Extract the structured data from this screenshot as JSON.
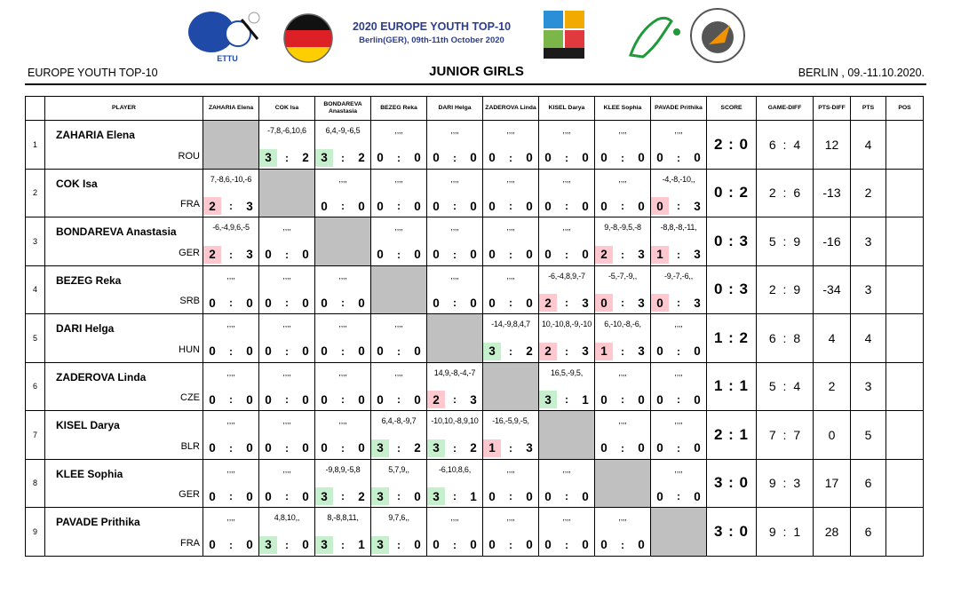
{
  "header": {
    "event_title": "2020 EUROPE YOUTH TOP-10",
    "event_subtitle": "Berlin(GER), 09th-11th October 2020",
    "left": "EUROPE YOUTH TOP-10",
    "center": "JUNIOR GIRLS",
    "right": "BERLIN , 09.-11.10.2020.",
    "logos": [
      "ettu-logo",
      "germany-flag-icon",
      "europe-youth-top10-logo",
      "dttb-logo",
      "berlin-club-logo"
    ]
  },
  "columns": {
    "player": "PLAYER",
    "opponents": [
      "ZAHARIA Elena",
      "COK Isa",
      "BONDAREVA Anastasia",
      "BEZEG Reka",
      "DARI Helga",
      "ZADEROVA Linda",
      "KISEL Darya",
      "KLEE Sophia",
      "PAVADE Prithika"
    ],
    "score": "SCORE",
    "game_diff": "GAME-DIFF",
    "pts_diff": "PTS-DIFF",
    "pts": "PTS",
    "pos": "POS"
  },
  "rows": [
    {
      "num": "1",
      "name": "ZAHARIA Elena",
      "nat": "ROU",
      "score": "2 : 0",
      "gd": "6 : 4",
      "pd": "12",
      "pts": "4",
      "pos": "",
      "cells": [
        null,
        {
          "sets": "-7,8,-6,10,6",
          "a": "3",
          "b": "2",
          "r": "w"
        },
        {
          "sets": "6,4,-9,-6,5",
          "a": "3",
          "b": "2",
          "r": "w"
        },
        {
          "sets": ",,,,",
          "a": "0",
          "b": "0",
          "r": ""
        },
        {
          "sets": ",,,,",
          "a": "0",
          "b": "0",
          "r": ""
        },
        {
          "sets": ",,,,",
          "a": "0",
          "b": "0",
          "r": ""
        },
        {
          "sets": ",,,,",
          "a": "0",
          "b": "0",
          "r": ""
        },
        {
          "sets": ",,,,",
          "a": "0",
          "b": "0",
          "r": ""
        },
        {
          "sets": ",,,,",
          "a": "0",
          "b": "0",
          "r": ""
        }
      ]
    },
    {
      "num": "2",
      "name": "COK Isa",
      "nat": "FRA",
      "score": "0 : 2",
      "gd": "2 : 6",
      "pd": "-13",
      "pts": "2",
      "pos": "",
      "cells": [
        {
          "sets": "7,-8,6,-10,-6",
          "a": "2",
          "b": "3",
          "r": "l"
        },
        null,
        {
          "sets": ",,,,",
          "a": "0",
          "b": "0",
          "r": ""
        },
        {
          "sets": ",,,,",
          "a": "0",
          "b": "0",
          "r": ""
        },
        {
          "sets": ",,,,",
          "a": "0",
          "b": "0",
          "r": ""
        },
        {
          "sets": ",,,,",
          "a": "0",
          "b": "0",
          "r": ""
        },
        {
          "sets": ",,,,",
          "a": "0",
          "b": "0",
          "r": ""
        },
        {
          "sets": ",,,,",
          "a": "0",
          "b": "0",
          "r": ""
        },
        {
          "sets": "-4,-8,-10,,",
          "a": "0",
          "b": "3",
          "r": "l"
        }
      ]
    },
    {
      "num": "3",
      "name": "BONDAREVA Anastasia",
      "nat": "GER",
      "score": "0 : 3",
      "gd": "5 : 9",
      "pd": "-16",
      "pts": "3",
      "pos": "",
      "cells": [
        {
          "sets": "-6,-4,9,6,-5",
          "a": "2",
          "b": "3",
          "r": "l"
        },
        {
          "sets": ",,,,",
          "a": "0",
          "b": "0",
          "r": ""
        },
        null,
        {
          "sets": ",,,,",
          "a": "0",
          "b": "0",
          "r": ""
        },
        {
          "sets": ",,,,",
          "a": "0",
          "b": "0",
          "r": ""
        },
        {
          "sets": ",,,,",
          "a": "0",
          "b": "0",
          "r": ""
        },
        {
          "sets": ",,,,",
          "a": "0",
          "b": "0",
          "r": ""
        },
        {
          "sets": "9,-8,-9,5,-8",
          "a": "2",
          "b": "3",
          "r": "l"
        },
        {
          "sets": "-8,8,-8,-11,",
          "a": "1",
          "b": "3",
          "r": "l"
        }
      ]
    },
    {
      "num": "4",
      "name": "BEZEG Reka",
      "nat": "SRB",
      "score": "0 : 3",
      "gd": "2 : 9",
      "pd": "-34",
      "pts": "3",
      "pos": "",
      "cells": [
        {
          "sets": ",,,,",
          "a": "0",
          "b": "0",
          "r": ""
        },
        {
          "sets": ",,,,",
          "a": "0",
          "b": "0",
          "r": ""
        },
        {
          "sets": ",,,,",
          "a": "0",
          "b": "0",
          "r": ""
        },
        null,
        {
          "sets": ",,,,",
          "a": "0",
          "b": "0",
          "r": ""
        },
        {
          "sets": ",,,,",
          "a": "0",
          "b": "0",
          "r": ""
        },
        {
          "sets": "-6,-4,8,9,-7",
          "a": "2",
          "b": "3",
          "r": "l"
        },
        {
          "sets": "-5,-7,-9,,",
          "a": "0",
          "b": "3",
          "r": "l"
        },
        {
          "sets": "-9,-7,-6,,",
          "a": "0",
          "b": "3",
          "r": "l"
        }
      ]
    },
    {
      "num": "5",
      "name": "DARI Helga",
      "nat": "HUN",
      "score": "1 : 2",
      "gd": "6 : 8",
      "pd": "4",
      "pts": "4",
      "pos": "",
      "cells": [
        {
          "sets": ",,,,",
          "a": "0",
          "b": "0",
          "r": ""
        },
        {
          "sets": ",,,,",
          "a": "0",
          "b": "0",
          "r": ""
        },
        {
          "sets": ",,,,",
          "a": "0",
          "b": "0",
          "r": ""
        },
        {
          "sets": ",,,,",
          "a": "0",
          "b": "0",
          "r": ""
        },
        null,
        {
          "sets": "-14,-9,8,4,7",
          "a": "3",
          "b": "2",
          "r": "w"
        },
        {
          "sets": "10,-10,8,-9,-10",
          "a": "2",
          "b": "3",
          "r": "l"
        },
        {
          "sets": "6,-10,-8,-6,",
          "a": "1",
          "b": "3",
          "r": "l"
        },
        {
          "sets": ",,,,",
          "a": "0",
          "b": "0",
          "r": ""
        }
      ]
    },
    {
      "num": "6",
      "name": "ZADEROVA Linda",
      "nat": "CZE",
      "score": "1 : 1",
      "gd": "5 : 4",
      "pd": "2",
      "pts": "3",
      "pos": "",
      "cells": [
        {
          "sets": ",,,,",
          "a": "0",
          "b": "0",
          "r": ""
        },
        {
          "sets": ",,,,",
          "a": "0",
          "b": "0",
          "r": ""
        },
        {
          "sets": ",,,,",
          "a": "0",
          "b": "0",
          "r": ""
        },
        {
          "sets": ",,,,",
          "a": "0",
          "b": "0",
          "r": ""
        },
        {
          "sets": "14,9,-8,-4,-7",
          "a": "2",
          "b": "3",
          "r": "l"
        },
        null,
        {
          "sets": "16,5,-9,5,",
          "a": "3",
          "b": "1",
          "r": "w"
        },
        {
          "sets": ",,,,",
          "a": "0",
          "b": "0",
          "r": ""
        },
        {
          "sets": ",,,,",
          "a": "0",
          "b": "0",
          "r": ""
        }
      ]
    },
    {
      "num": "7",
      "name": "KISEL Darya",
      "nat": "BLR",
      "score": "2 : 1",
      "gd": "7 : 7",
      "pd": "0",
      "pts": "5",
      "pos": "",
      "cells": [
        {
          "sets": ",,,,",
          "a": "0",
          "b": "0",
          "r": ""
        },
        {
          "sets": ",,,,",
          "a": "0",
          "b": "0",
          "r": ""
        },
        {
          "sets": ",,,,",
          "a": "0",
          "b": "0",
          "r": ""
        },
        {
          "sets": "6,4,-8,-9,7",
          "a": "3",
          "b": "2",
          "r": "w"
        },
        {
          "sets": "-10,10,-8,9,10",
          "a": "3",
          "b": "2",
          "r": "w"
        },
        {
          "sets": "-16,-5,9,-5,",
          "a": "1",
          "b": "3",
          "r": "l"
        },
        null,
        {
          "sets": ",,,,",
          "a": "0",
          "b": "0",
          "r": ""
        },
        {
          "sets": ",,,,",
          "a": "0",
          "b": "0",
          "r": ""
        }
      ]
    },
    {
      "num": "8",
      "name": "KLEE Sophia",
      "nat": "GER",
      "score": "3 : 0",
      "gd": "9 : 3",
      "pd": "17",
      "pts": "6",
      "pos": "",
      "cells": [
        {
          "sets": ",,,,",
          "a": "0",
          "b": "0",
          "r": ""
        },
        {
          "sets": ",,,,",
          "a": "0",
          "b": "0",
          "r": ""
        },
        {
          "sets": "-9,8,9,-5,8",
          "a": "3",
          "b": "2",
          "r": "w"
        },
        {
          "sets": "5,7,9,,",
          "a": "3",
          "b": "0",
          "r": "w"
        },
        {
          "sets": "-6,10,8,6,",
          "a": "3",
          "b": "1",
          "r": "w"
        },
        {
          "sets": ",,,,",
          "a": "0",
          "b": "0",
          "r": ""
        },
        {
          "sets": ",,,,",
          "a": "0",
          "b": "0",
          "r": ""
        },
        null,
        {
          "sets": ",,,,",
          "a": "0",
          "b": "0",
          "r": ""
        }
      ]
    },
    {
      "num": "9",
      "name": "PAVADE Prithika",
      "nat": "FRA",
      "score": "3 : 0",
      "gd": "9 : 1",
      "pd": "28",
      "pts": "6",
      "pos": "",
      "cells": [
        {
          "sets": ",,,,",
          "a": "0",
          "b": "0",
          "r": ""
        },
        {
          "sets": "4,8,10,,",
          "a": "3",
          "b": "0",
          "r": "w"
        },
        {
          "sets": "8,-8,8,11,",
          "a": "3",
          "b": "1",
          "r": "w"
        },
        {
          "sets": "9,7,6,,",
          "a": "3",
          "b": "0",
          "r": "w"
        },
        {
          "sets": ",,,,",
          "a": "0",
          "b": "0",
          "r": ""
        },
        {
          "sets": ",,,,",
          "a": "0",
          "b": "0",
          "r": ""
        },
        {
          "sets": ",,,,",
          "a": "0",
          "b": "0",
          "r": ""
        },
        {
          "sets": ",,,,",
          "a": "0",
          "b": "0",
          "r": ""
        },
        null
      ]
    }
  ],
  "colors": {
    "win": "#c6efce",
    "loss": "#ffc7ce",
    "self": "#c0c0c0",
    "title_blue": "#2c3e8c"
  }
}
